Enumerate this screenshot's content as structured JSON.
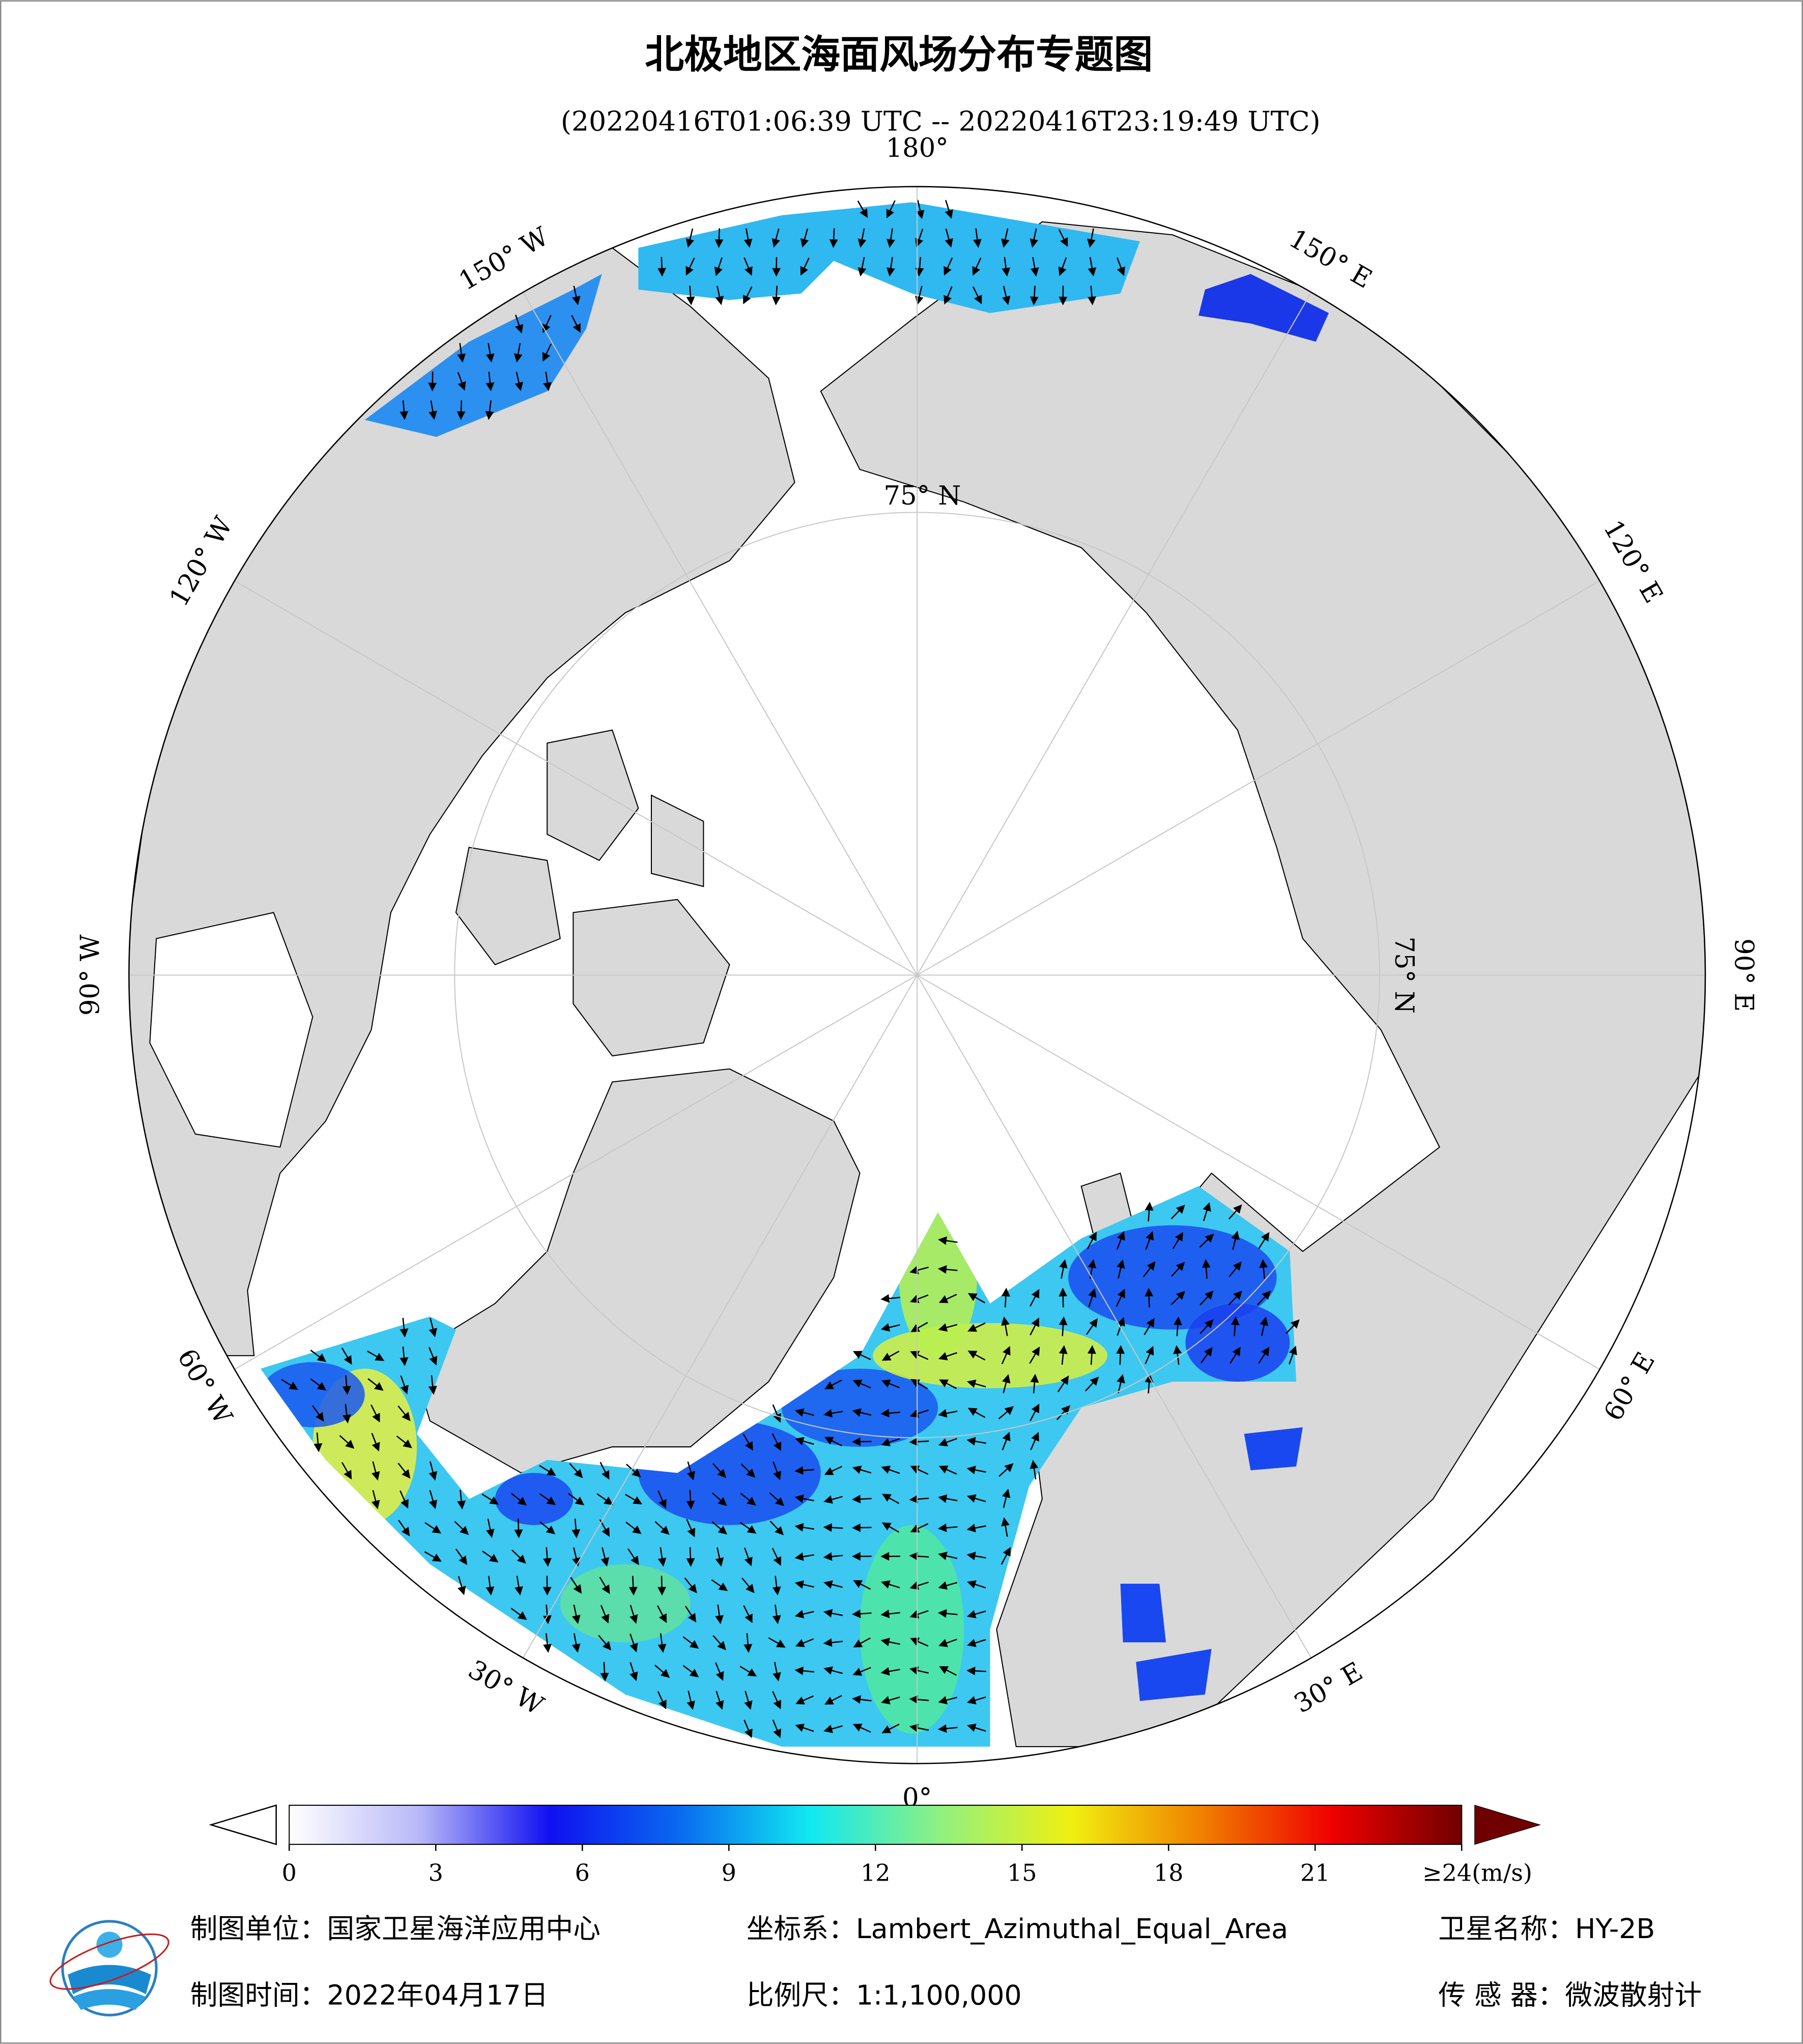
{
  "map": {
    "title": "北极地区海面风场分布专题图",
    "subtitle": "(20220416T01:06:39 UTC -- 20220416T23:19:49 UTC)",
    "lon_ticks": [
      {
        "value": 180,
        "label": "180°"
      },
      {
        "value": 150,
        "label": "150° E"
      },
      {
        "value": 120,
        "label": "120° E"
      },
      {
        "value": 90,
        "label": "90° E"
      },
      {
        "value": 60,
        "label": "60° E"
      },
      {
        "value": 30,
        "label": "30° E"
      },
      {
        "value": 0,
        "label": "0°"
      },
      {
        "value": -30,
        "label": "30° W"
      },
      {
        "value": -60,
        "label": "60° W"
      },
      {
        "value": -90,
        "label": "90° W"
      },
      {
        "value": -120,
        "label": "120° W"
      },
      {
        "value": -150,
        "label": "150° W"
      }
    ],
    "lat_ticks": [
      {
        "value": 75,
        "label": "75° N"
      }
    ]
  },
  "colorbar": {
    "lim": [
      0,
      24
    ],
    "ticks": [
      0,
      3,
      6,
      9,
      12,
      15,
      18,
      21,
      {
        "value": 24,
        "label": "≥24(m/s)"
      }
    ],
    "colors": [
      "#ffffff",
      "#b8b8f8",
      "#1010f0",
      "#0a6af0",
      "#10e8f0",
      "#90f080",
      "#f0f010",
      "#f08000",
      "#f00000",
      "#700000"
    ]
  },
  "footer": {
    "org": "制图单位：国家卫星海洋应用中心",
    "projection": "坐标系：Lambert_Azimuthal_Equal_Area",
    "satellite": "卫星名称：HY-2B",
    "date": "制图时间：2022年04月17日",
    "scale": "比例尺：1:1,100,000",
    "sensor": "传 感 器：微波散射计"
  }
}
